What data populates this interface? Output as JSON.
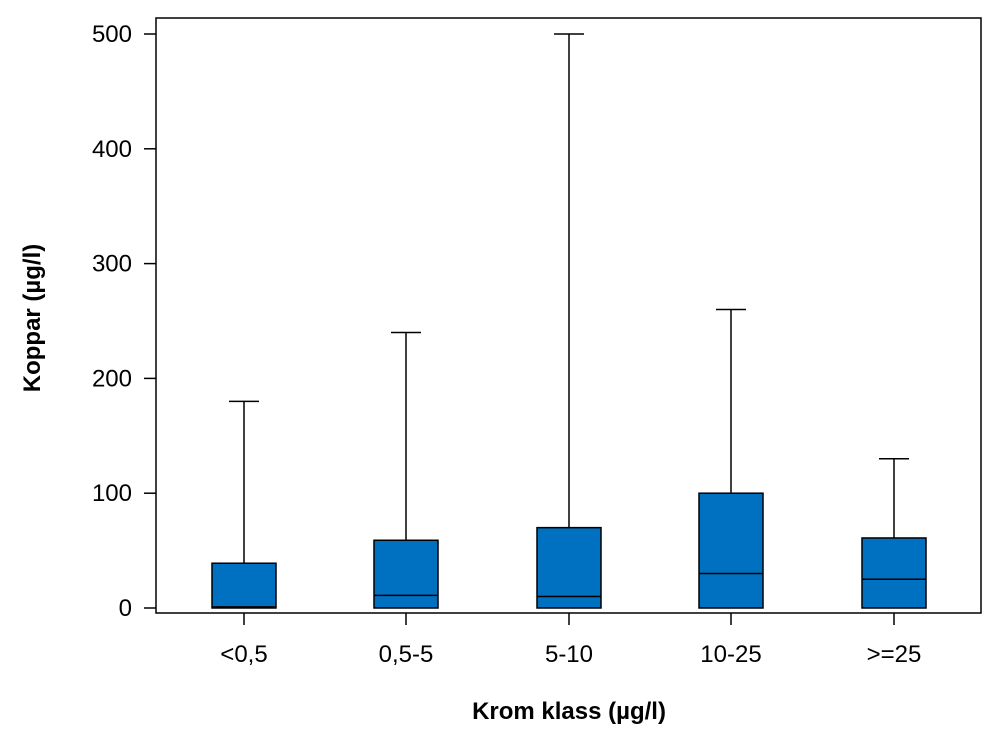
{
  "chart_data": {
    "type": "boxplot",
    "title": "",
    "xlabel": "Krom klass (µg/l)",
    "ylabel": "Koppar (µg/l)",
    "ylim": [
      0,
      500
    ],
    "yticks": [
      0,
      100,
      200,
      300,
      400,
      500
    ],
    "grid": false,
    "legend": "none",
    "box_color": "#0070c0",
    "categories": [
      "<0,5",
      "0,5-5",
      "5-10",
      "10-25",
      ">=25"
    ],
    "boxes": [
      {
        "category": "<0,5",
        "min": 0,
        "q1": 0,
        "median": 1,
        "q3": 39,
        "max": 180
      },
      {
        "category": "0,5-5",
        "min": 0,
        "q1": 0,
        "median": 11,
        "q3": 59,
        "max": 240
      },
      {
        "category": "5-10",
        "min": 0,
        "q1": 0,
        "median": 10,
        "q3": 70,
        "max": 500
      },
      {
        "category": "10-25",
        "min": 0,
        "q1": 0,
        "median": 30,
        "q3": 100,
        "max": 260
      },
      {
        "category": ">=25",
        "min": 0,
        "q1": 0,
        "median": 25,
        "q3": 61,
        "max": 130
      }
    ]
  }
}
